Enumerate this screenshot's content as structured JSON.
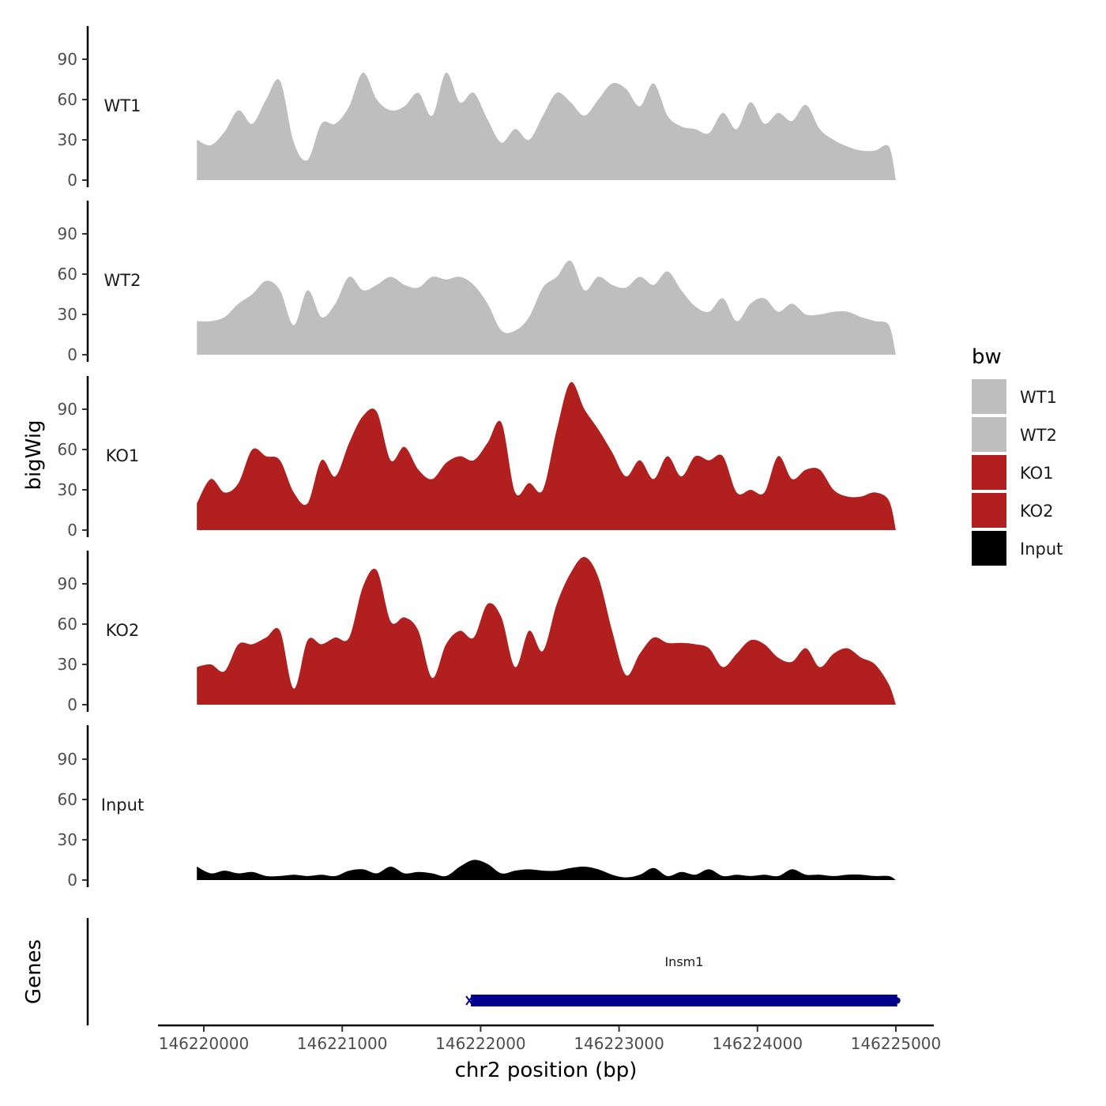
{
  "chart_data": {
    "type": "area",
    "xlabel": "chr2 position (bp)",
    "ylabel": "bigWig",
    "gene_panel_label": "Genes",
    "x_ticks": [
      146220000,
      146221000,
      146222000,
      146223000,
      146224000,
      146225000
    ],
    "xlim": [
      146219670,
      146225270
    ],
    "y_ticks": [
      0,
      30,
      60,
      90
    ],
    "ylim": [
      0,
      115
    ],
    "grid": false,
    "legend": {
      "title": "bw",
      "position": "right",
      "entries": [
        {
          "label": "WT1",
          "color": "#bebebe"
        },
        {
          "label": "WT2",
          "color": "#bebebe"
        },
        {
          "label": "KO1",
          "color": "#b21f1f"
        },
        {
          "label": "KO2",
          "color": "#b21f1f"
        },
        {
          "label": "Input",
          "color": "#000000"
        }
      ]
    },
    "series": [
      {
        "name": "WT1",
        "color": "#bebebe",
        "x": [
          146219950,
          146220050,
          146220150,
          146220250,
          146220350,
          146220450,
          146220550,
          146220650,
          146220750,
          146220850,
          146220950,
          146221050,
          146221150,
          146221250,
          146221350,
          146221450,
          146221550,
          146221650,
          146221750,
          146221850,
          146221950,
          146222050,
          146222150,
          146222250,
          146222350,
          146222450,
          146222550,
          146222650,
          146222750,
          146222850,
          146222950,
          146223050,
          146223150,
          146223250,
          146223350,
          146223450,
          146223550,
          146223650,
          146223750,
          146223850,
          146223950,
          146224050,
          146224150,
          146224250,
          146224350,
          146224450,
          146224550,
          146224650,
          146224750,
          146224850,
          146224950,
          146225000
        ],
        "values": [
          30,
          26,
          36,
          52,
          42,
          60,
          74,
          28,
          15,
          42,
          42,
          55,
          80,
          60,
          52,
          55,
          65,
          48,
          80,
          58,
          65,
          45,
          28,
          38,
          30,
          48,
          65,
          58,
          48,
          60,
          72,
          68,
          55,
          72,
          48,
          40,
          38,
          35,
          50,
          38,
          58,
          42,
          50,
          44,
          56,
          38,
          30,
          25,
          22,
          22,
          25,
          0
        ]
      },
      {
        "name": "WT2",
        "color": "#bebebe",
        "x": [
          146219950,
          146220050,
          146220150,
          146220250,
          146220350,
          146220450,
          146220550,
          146220650,
          146220750,
          146220850,
          146220950,
          146221050,
          146221150,
          146221250,
          146221350,
          146221450,
          146221550,
          146221650,
          146221750,
          146221850,
          146221950,
          146222050,
          146222150,
          146222250,
          146222350,
          146222450,
          146222550,
          146222650,
          146222750,
          146222850,
          146222950,
          146223050,
          146223150,
          146223250,
          146223350,
          146223450,
          146223550,
          146223650,
          146223750,
          146223850,
          146223950,
          146224050,
          146224150,
          146224250,
          146224350,
          146224450,
          146224550,
          146224650,
          146224750,
          146224850,
          146224950,
          146225000
        ],
        "values": [
          25,
          25,
          28,
          38,
          45,
          55,
          48,
          22,
          48,
          28,
          38,
          58,
          48,
          52,
          58,
          52,
          50,
          58,
          56,
          58,
          52,
          38,
          18,
          18,
          28,
          50,
          58,
          70,
          48,
          58,
          52,
          50,
          58,
          52,
          62,
          48,
          36,
          32,
          42,
          25,
          38,
          42,
          32,
          38,
          30,
          30,
          32,
          32,
          28,
          25,
          22,
          0
        ]
      },
      {
        "name": "KO1",
        "color": "#b21f1f",
        "x": [
          146219950,
          146220050,
          146220150,
          146220250,
          146220350,
          146220450,
          146220550,
          146220650,
          146220750,
          146220850,
          146220950,
          146221050,
          146221150,
          146221250,
          146221350,
          146221450,
          146221550,
          146221650,
          146221750,
          146221850,
          146221950,
          146222050,
          146222150,
          146222250,
          146222350,
          146222450,
          146222550,
          146222650,
          146222750,
          146222850,
          146222950,
          146223050,
          146223150,
          146223250,
          146223350,
          146223450,
          146223550,
          146223650,
          146223750,
          146223850,
          146223950,
          146224050,
          146224150,
          146224250,
          146224350,
          146224450,
          146224550,
          146224650,
          146224750,
          146224850,
          146224950,
          146225000
        ],
        "values": [
          20,
          38,
          28,
          35,
          60,
          55,
          52,
          28,
          20,
          52,
          40,
          65,
          85,
          88,
          52,
          62,
          45,
          38,
          50,
          55,
          52,
          65,
          80,
          28,
          35,
          30,
          75,
          110,
          90,
          75,
          58,
          40,
          52,
          38,
          55,
          40,
          55,
          52,
          55,
          28,
          30,
          28,
          55,
          38,
          45,
          45,
          30,
          25,
          25,
          28,
          22,
          0
        ]
      },
      {
        "name": "KO2",
        "color": "#b21f1f",
        "x": [
          146219950,
          146220050,
          146220150,
          146220250,
          146220350,
          146220450,
          146220550,
          146220650,
          146220750,
          146220850,
          146220950,
          146221050,
          146221150,
          146221250,
          146221350,
          146221450,
          146221550,
          146221650,
          146221750,
          146221850,
          146221950,
          146222050,
          146222150,
          146222250,
          146222350,
          146222450,
          146222550,
          146222650,
          146222750,
          146222850,
          146222950,
          146223050,
          146223150,
          146223250,
          146223350,
          146223450,
          146223550,
          146223650,
          146223750,
          146223850,
          146223950,
          146224050,
          146224150,
          146224250,
          146224350,
          146224450,
          146224550,
          146224650,
          146224750,
          146224850,
          146224950,
          146225000
        ],
        "values": [
          28,
          30,
          25,
          45,
          45,
          50,
          55,
          12,
          48,
          45,
          50,
          50,
          88,
          100,
          62,
          65,
          55,
          20,
          45,
          55,
          50,
          75,
          65,
          28,
          55,
          40,
          75,
          98,
          110,
          95,
          55,
          22,
          38,
          50,
          46,
          46,
          45,
          42,
          28,
          38,
          48,
          45,
          35,
          32,
          42,
          28,
          38,
          42,
          35,
          30,
          15,
          0
        ]
      },
      {
        "name": "Input",
        "color": "#000000",
        "x": [
          146219950,
          146220050,
          146220150,
          146220250,
          146220350,
          146220450,
          146220550,
          146220650,
          146220750,
          146220850,
          146220950,
          146221050,
          146221150,
          146221250,
          146221350,
          146221450,
          146221550,
          146221650,
          146221750,
          146221850,
          146221950,
          146222050,
          146222150,
          146222250,
          146222350,
          146222450,
          146222550,
          146222650,
          146222750,
          146222850,
          146222950,
          146223050,
          146223150,
          146223250,
          146223350,
          146223450,
          146223550,
          146223650,
          146223750,
          146223850,
          146223950,
          146224050,
          146224150,
          146224250,
          146224350,
          146224450,
          146224550,
          146224650,
          146224750,
          146224850,
          146224950,
          146225000
        ],
        "values": [
          10,
          5,
          7,
          5,
          6,
          3,
          3,
          4,
          3,
          4,
          3,
          7,
          8,
          5,
          10,
          5,
          6,
          5,
          3,
          10,
          15,
          12,
          5,
          7,
          8,
          7,
          7,
          9,
          10,
          8,
          4,
          2,
          4,
          9,
          3,
          6,
          4,
          8,
          3,
          4,
          3,
          4,
          3,
          8,
          4,
          4,
          3,
          4,
          4,
          3,
          3,
          0
        ]
      }
    ],
    "genes": [
      {
        "name": "Insm1",
        "start": 146221930,
        "end": 146225010,
        "color": "#00008b"
      }
    ]
  }
}
